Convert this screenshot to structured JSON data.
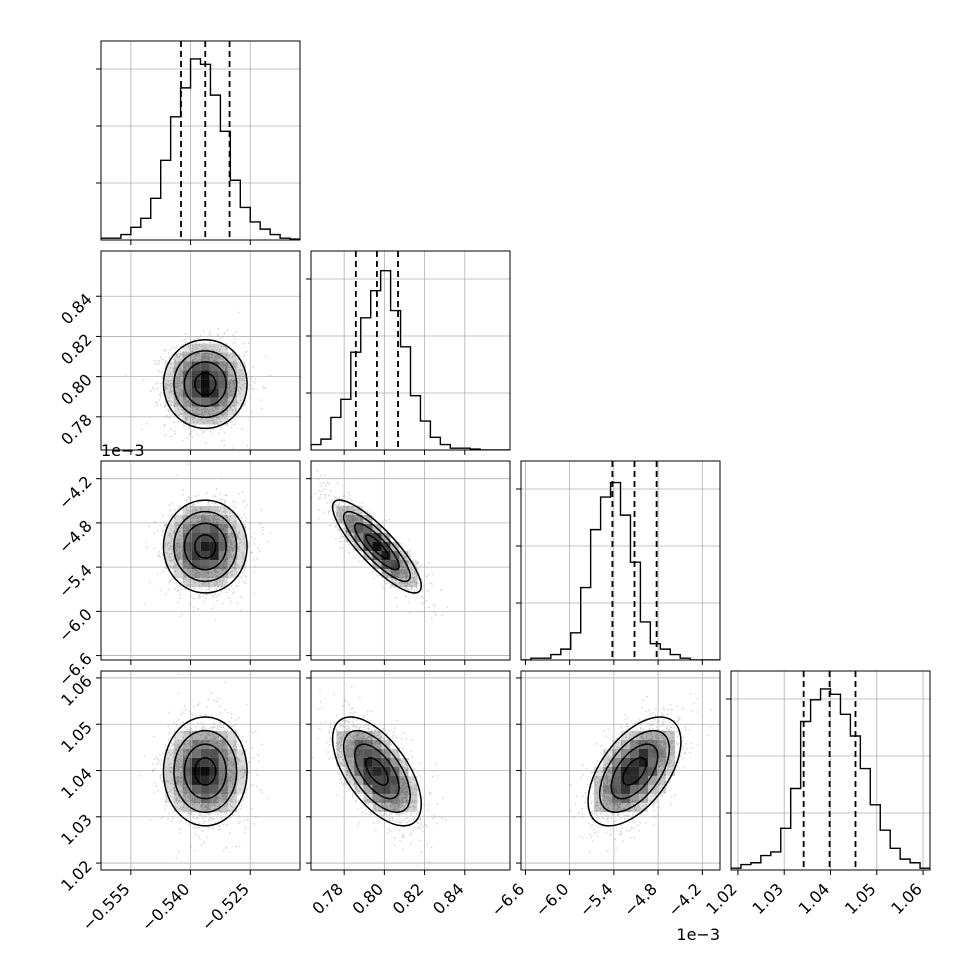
{
  "chart_data": {
    "type": "corner",
    "parameters": [
      {
        "ticks": [
          -0.555,
          -0.54,
          -0.525
        ],
        "tick_labels": [
          "−0.555",
          "−0.540",
          "−0.525"
        ],
        "range": [
          -0.5625,
          -0.5125
        ],
        "mean": -0.5363,
        "sigma": 0.005,
        "quantiles": [
          -0.5424,
          -0.5363,
          -0.5302
        ],
        "hist": [
          0.01,
          0.01,
          0.03,
          0.07,
          0.12,
          0.23,
          0.44,
          0.68,
          0.84,
          1.0,
          0.97,
          0.8,
          0.6,
          0.33,
          0.18,
          0.1,
          0.06,
          0.03,
          0.01,
          0.005
        ]
      },
      {
        "ticks": [
          0.78,
          0.8,
          0.82,
          0.84
        ],
        "tick_labels": [
          "0.78",
          "0.80",
          "0.82",
          "0.84"
        ],
        "range": [
          0.7635,
          0.8625
        ],
        "mean": 0.7963,
        "sigma": 0.0105,
        "quantiles": [
          0.7858,
          0.7963,
          0.8068
        ],
        "hist": [
          0.03,
          0.06,
          0.18,
          0.28,
          0.54,
          0.73,
          0.88,
          0.99,
          0.77,
          0.57,
          0.3,
          0.16,
          0.07,
          0.03,
          0.01,
          0.01,
          0.005,
          0,
          0,
          0
        ]
      },
      {
        "ticks": [
          -6.6,
          -6.0,
          -5.4,
          -4.8,
          -4.2
        ],
        "tick_labels": [
          "−6.6",
          "−6.0",
          "−5.4",
          "−4.8",
          "−4.2"
        ],
        "range": [
          -6.66,
          -3.96
        ],
        "mean": -5.12,
        "sigma": 0.3,
        "quantiles": [
          -5.42,
          -5.12,
          -4.82
        ],
        "hist": [
          0,
          0.01,
          0.01,
          0.03,
          0.06,
          0.15,
          0.4,
          0.72,
          0.9,
          0.98,
          0.8,
          0.54,
          0.21,
          0.09,
          0.06,
          0.03,
          0.01,
          0,
          0,
          0
        ]
      },
      {
        "ticks": [
          1.02,
          1.03,
          1.04,
          1.05,
          1.06
        ],
        "tick_labels": [
          "1.02",
          "1.03",
          "1.04",
          "1.05",
          "1.06"
        ],
        "range": [
          1.0185,
          1.0615
        ],
        "mean": 1.0398,
        "sigma": 0.0056,
        "quantiles": [
          1.0342,
          1.0398,
          1.0454
        ],
        "hist": [
          0.01,
          0.03,
          0.04,
          0.08,
          0.1,
          0.23,
          0.45,
          0.82,
          0.94,
          1.0,
          0.97,
          0.86,
          0.74,
          0.56,
          0.36,
          0.22,
          0.12,
          0.06,
          0.04,
          0.01
        ]
      }
    ],
    "correlations": [
      [
        1,
        0,
        0,
        0
      ],
      [
        0,
        1,
        -0.85,
        -0.6
      ],
      [
        0,
        -0.85,
        1,
        0.55
      ],
      [
        0,
        -0.6,
        0.55,
        1
      ]
    ],
    "offset_labels": [
      "1e−3",
      "1e−3"
    ],
    "contour_levels_sigma": [
      0.5,
      1.0,
      1.5,
      2.0
    ],
    "tick_label_rotation": 45,
    "dashed_quantile_lines": true,
    "grid": true
  },
  "colors": {
    "hist_line": "#000000",
    "contour": "#000000",
    "density": "#000000",
    "points": "#9a9a9a",
    "grid": "#b0b0b0"
  }
}
